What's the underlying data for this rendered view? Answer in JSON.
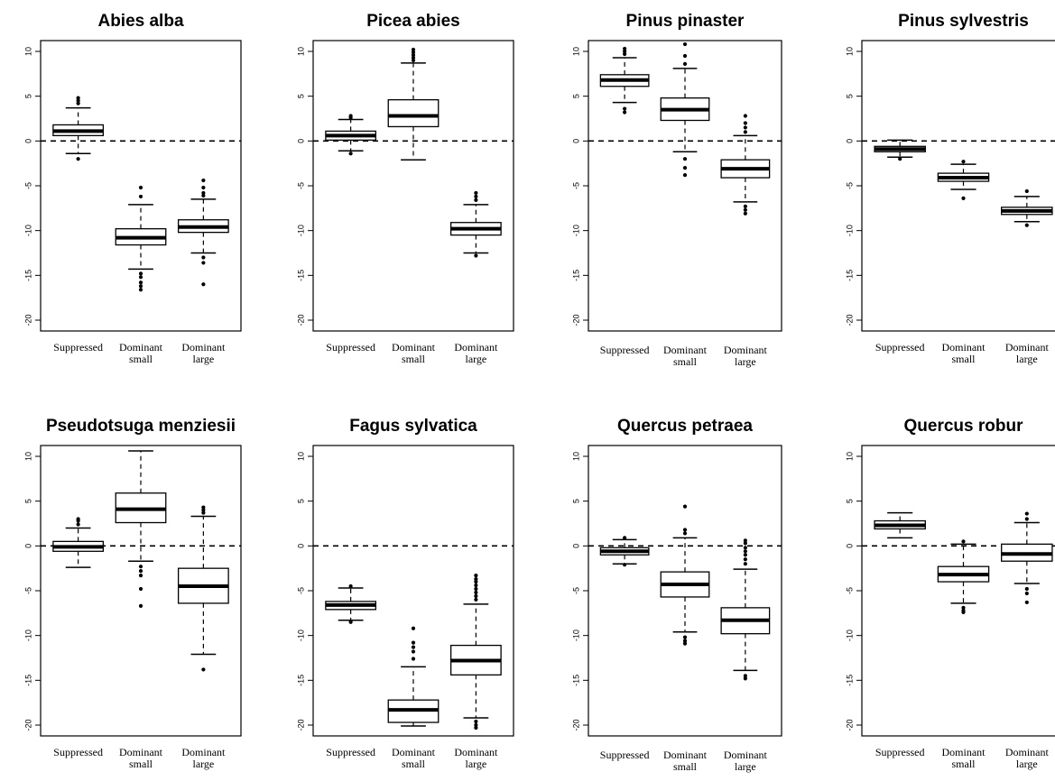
{
  "chart_data": [
    {
      "type": "boxplot",
      "title": "Abies alba",
      "xlabel": "",
      "ylabel": "",
      "ylim": [
        -20,
        10
      ],
      "yticks": [
        "10",
        "5",
        "0",
        "-5",
        "-10",
        "-15",
        "-20"
      ],
      "reference_line": 0,
      "categories": [
        [
          "Suppressed"
        ],
        [
          "Dominant",
          "small"
        ],
        [
          "Dominant",
          "large"
        ]
      ],
      "boxes": [
        {
          "whisker_low": -1.4,
          "q1": 0.6,
          "median": 1.1,
          "q3": 1.8,
          "whisker_high": 3.7,
          "outliers": [
            4.2,
            4.5,
            4.8,
            -2.0
          ]
        },
        {
          "whisker_low": -14.3,
          "q1": -11.6,
          "median": -10.8,
          "q3": -9.8,
          "whisker_high": -7.1,
          "outliers": [
            -5.2,
            -6.2,
            -14.8,
            -15.2,
            -15.8,
            -16.2,
            -16.6
          ]
        },
        {
          "whisker_low": -12.5,
          "q1": -10.2,
          "median": -9.6,
          "q3": -8.8,
          "whisker_high": -6.5,
          "outliers": [
            -4.4,
            -5.2,
            -5.8,
            -6.1,
            -13.0,
            -13.6,
            -16.0
          ]
        }
      ]
    },
    {
      "type": "boxplot",
      "title": "Picea abies",
      "xlabel": "",
      "ylabel": "",
      "ylim": [
        -20,
        10
      ],
      "yticks": [
        "10",
        "5",
        "0",
        "-5",
        "-10",
        "-15",
        "-20"
      ],
      "reference_line": 0,
      "categories": [
        [
          "Suppressed"
        ],
        [
          "Dominant",
          "small"
        ],
        [
          "Dominant",
          "large"
        ]
      ],
      "boxes": [
        {
          "whisker_low": -1.1,
          "q1": 0.1,
          "median": 0.6,
          "q3": 1.1,
          "whisker_high": 2.4,
          "outliers": [
            2.8,
            2.6,
            -1.4
          ]
        },
        {
          "whisker_low": -2.1,
          "q1": 1.6,
          "median": 2.8,
          "q3": 4.6,
          "whisker_high": 8.7,
          "outliers": [
            9.0,
            9.3,
            9.6,
            9.9,
            10.2
          ]
        },
        {
          "whisker_low": -12.5,
          "q1": -10.5,
          "median": -9.8,
          "q3": -9.1,
          "whisker_high": -7.1,
          "outliers": [
            -5.8,
            -6.2,
            -6.6,
            -12.8
          ]
        }
      ]
    },
    {
      "type": "boxplot",
      "title": "Pinus pinaster",
      "xlabel": "",
      "ylabel": "",
      "ylim": [
        -20,
        10
      ],
      "yticks": [
        "10",
        "5",
        "0",
        "-5",
        "-10",
        "-15",
        "-20"
      ],
      "reference_line": 0,
      "categories": [
        [
          "Suppressed"
        ],
        [
          "Dominant",
          "small"
        ],
        [
          "Dominant",
          "large"
        ]
      ],
      "boxes": [
        {
          "whisker_low": 4.3,
          "q1": 6.1,
          "median": 6.8,
          "q3": 7.4,
          "whisker_high": 9.3,
          "outliers": [
            9.7,
            10.0,
            10.3,
            3.6,
            3.2
          ]
        },
        {
          "whisker_low": -1.2,
          "q1": 2.3,
          "median": 3.5,
          "q3": 4.8,
          "whisker_high": 8.1,
          "outliers": [
            8.6,
            9.5,
            10.8,
            -2.0,
            -3.0,
            -3.8
          ]
        },
        {
          "whisker_low": -6.8,
          "q1": -4.1,
          "median": -3.1,
          "q3": -2.1,
          "whisker_high": 0.6,
          "outliers": [
            1.0,
            1.5,
            2.0,
            2.8,
            -7.3,
            -7.7,
            -8.1
          ]
        }
      ]
    },
    {
      "type": "boxplot",
      "title": "Pinus sylvestris",
      "xlabel": "",
      "ylabel": "",
      "ylim": [
        -20,
        10
      ],
      "yticks": [
        "10",
        "5",
        "0",
        "-5",
        "-10",
        "-15",
        "-20"
      ],
      "reference_line": 0,
      "categories": [
        [
          "Suppressed"
        ],
        [
          "Dominant",
          "small"
        ],
        [
          "Dominant",
          "large"
        ]
      ],
      "boxes": [
        {
          "whisker_low": -1.8,
          "q1": -1.2,
          "median": -0.9,
          "q3": -0.6,
          "whisker_high": 0.1,
          "outliers": [
            -2.0
          ]
        },
        {
          "whisker_low": -5.4,
          "q1": -4.5,
          "median": -4.1,
          "q3": -3.6,
          "whisker_high": -2.6,
          "outliers": [
            -2.3,
            -6.4
          ]
        },
        {
          "whisker_low": -9.0,
          "q1": -8.2,
          "median": -7.8,
          "q3": -7.4,
          "whisker_high": -6.2,
          "outliers": [
            -5.6,
            -9.4
          ]
        }
      ]
    },
    {
      "type": "boxplot",
      "title": "Pseudotsuga menziesii",
      "xlabel": "",
      "ylabel": "",
      "ylim": [
        -20,
        10
      ],
      "yticks": [
        "10",
        "5",
        "0",
        "-5",
        "-10",
        "-15",
        "-20"
      ],
      "reference_line": 0,
      "categories": [
        [
          "Suppressed"
        ],
        [
          "Dominant",
          "small"
        ],
        [
          "Dominant",
          "large"
        ]
      ],
      "boxes": [
        {
          "whisker_low": -2.4,
          "q1": -0.6,
          "median": -0.1,
          "q3": 0.5,
          "whisker_high": 2.0,
          "outliers": [
            2.4,
            2.8,
            3.0
          ]
        },
        {
          "whisker_low": -1.7,
          "q1": 2.6,
          "median": 4.1,
          "q3": 5.9,
          "whisker_high": 10.6,
          "outliers": [
            -2.3,
            -2.8,
            -3.3,
            -4.8,
            -6.7
          ]
        },
        {
          "whisker_low": -12.1,
          "q1": -6.4,
          "median": -4.5,
          "q3": -2.5,
          "whisker_high": 3.3,
          "outliers": [
            3.7,
            4.0,
            4.3,
            -13.8
          ]
        }
      ]
    },
    {
      "type": "boxplot",
      "title": "Fagus sylvatica",
      "xlabel": "",
      "ylabel": "",
      "ylim": [
        -20,
        10
      ],
      "yticks": [
        "10",
        "5",
        "0",
        "-5",
        "-10",
        "-15",
        "-20"
      ],
      "reference_line": 0,
      "categories": [
        [
          "Suppressed"
        ],
        [
          "Dominant",
          "small"
        ],
        [
          "Dominant",
          "large"
        ]
      ],
      "boxes": [
        {
          "whisker_low": -8.3,
          "q1": -7.1,
          "median": -6.6,
          "q3": -6.2,
          "whisker_high": -4.7,
          "outliers": [
            -4.5,
            -8.5
          ]
        },
        {
          "whisker_low": -20.1,
          "q1": -19.7,
          "median": -18.3,
          "q3": -17.2,
          "whisker_high": -13.5,
          "outliers": [
            -9.2,
            -10.8,
            -11.3,
            -11.8,
            -12.6
          ]
        },
        {
          "whisker_low": -19.2,
          "q1": -14.4,
          "median": -12.8,
          "q3": -11.1,
          "whisker_high": -6.5,
          "outliers": [
            -3.3,
            -3.7,
            -4.0,
            -4.4,
            -4.8,
            -5.2,
            -5.6,
            -6.0,
            -19.6,
            -20.0,
            -20.3
          ]
        }
      ]
    },
    {
      "type": "boxplot",
      "title": "Quercus petraea",
      "xlabel": "",
      "ylabel": "",
      "ylim": [
        -20,
        10
      ],
      "yticks": [
        "10",
        "5",
        "0",
        "-5",
        "-10",
        "-15",
        "-20"
      ],
      "reference_line": 0,
      "categories": [
        [
          "Suppressed"
        ],
        [
          "Dominant",
          "small"
        ],
        [
          "Dominant",
          "large"
        ]
      ],
      "boxes": [
        {
          "whisker_low": -2.0,
          "q1": -1.0,
          "median": -0.6,
          "q3": -0.2,
          "whisker_high": 0.7,
          "outliers": [
            0.9,
            -2.1
          ]
        },
        {
          "whisker_low": -9.6,
          "q1": -5.7,
          "median": -4.3,
          "q3": -2.9,
          "whisker_high": 0.9,
          "outliers": [
            1.4,
            1.8,
            4.4,
            -10.2,
            -10.6,
            -10.9
          ]
        },
        {
          "whisker_low": -13.9,
          "q1": -9.8,
          "median": -8.3,
          "q3": -6.9,
          "whisker_high": -2.6,
          "outliers": [
            -2.0,
            -1.5,
            -1.0,
            -0.6,
            -0.2,
            0.3,
            0.6,
            -14.5,
            -14.8
          ]
        }
      ]
    },
    {
      "type": "boxplot",
      "title": "Quercus robur",
      "xlabel": "",
      "ylabel": "",
      "ylim": [
        -20,
        10
      ],
      "yticks": [
        "10",
        "5",
        "0",
        "-5",
        "-10",
        "-15",
        "-20"
      ],
      "reference_line": 0,
      "categories": [
        [
          "Suppressed"
        ],
        [
          "Dominant",
          "small"
        ],
        [
          "Dominant",
          "large"
        ]
      ],
      "boxes": [
        {
          "whisker_low": 0.9,
          "q1": 1.9,
          "median": 2.3,
          "q3": 2.8,
          "whisker_high": 3.7,
          "outliers": []
        },
        {
          "whisker_low": -6.4,
          "q1": -4.0,
          "median": -3.2,
          "q3": -2.3,
          "whisker_high": 0.2,
          "outliers": [
            0.5,
            -6.9,
            -7.2,
            -7.4
          ]
        },
        {
          "whisker_low": -4.2,
          "q1": -1.7,
          "median": -0.9,
          "q3": 0.2,
          "whisker_high": 2.6,
          "outliers": [
            3.0,
            3.6,
            -4.8,
            -5.3,
            -6.3
          ]
        }
      ]
    }
  ]
}
